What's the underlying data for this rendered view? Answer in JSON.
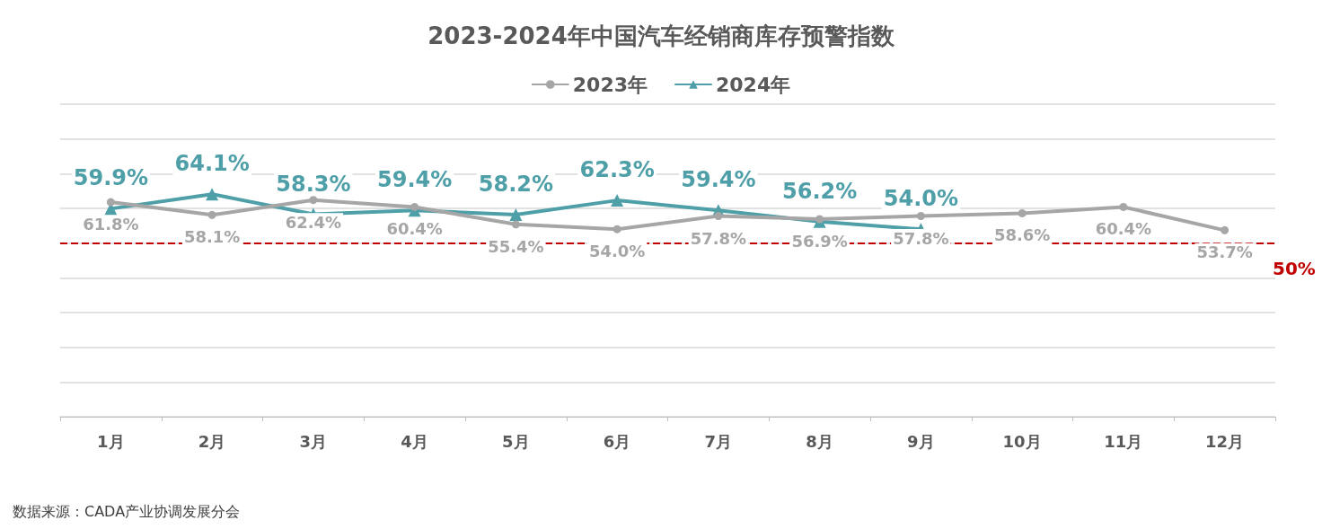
{
  "chart_data": {
    "type": "line",
    "title": "2023-2024年中国汽车经销商库存预警指数",
    "categories": [
      "1月",
      "2月",
      "3月",
      "4月",
      "5月",
      "6月",
      "7月",
      "8月",
      "9月",
      "10月",
      "11月",
      "12月"
    ],
    "series": [
      {
        "name": "2023年",
        "color": "#a6a6a6",
        "marker": "circle",
        "values": [
          61.8,
          58.1,
          62.4,
          60.4,
          55.4,
          54.0,
          57.8,
          56.9,
          57.8,
          58.6,
          60.4,
          53.7
        ],
        "value_labels": [
          "61.8%",
          "58.1%",
          "62.4%",
          "60.4%",
          "55.4%",
          "54.0%",
          "57.8%",
          "56.9%",
          "57.8%",
          "58.6%",
          "60.4%",
          "53.7%"
        ]
      },
      {
        "name": "2024年",
        "color": "#4e9fa8",
        "marker": "triangle",
        "values": [
          59.9,
          64.1,
          58.3,
          59.4,
          58.2,
          62.3,
          59.4,
          56.2,
          54.0,
          null,
          null,
          null
        ],
        "value_labels": [
          "59.9%",
          "64.1%",
          "58.3%",
          "59.4%",
          "58.2%",
          "62.3%",
          "59.4%",
          "56.2%",
          "54.0%",
          null,
          null,
          null
        ]
      }
    ],
    "ylim": [
      0,
      90
    ],
    "yticks": [
      {
        "value": 0,
        "label": null
      },
      {
        "value": 10,
        "label": null
      },
      {
        "value": 20,
        "label": null
      },
      {
        "value": 30,
        "label": null
      },
      {
        "value": 40,
        "label": null
      },
      {
        "value": 50,
        "label": null
      },
      {
        "value": 60,
        "label": null
      },
      {
        "value": 70,
        "label": null
      },
      {
        "value": 80,
        "label": null
      },
      {
        "value": 90,
        "label": null
      }
    ],
    "tick_labels": "x",
    "grid": "y",
    "legend": "top",
    "line_style": "solid",
    "ref_lines": [
      {
        "axis": "y",
        "value": 50,
        "label": "50%",
        "color": "#c00000",
        "line_style": "dashed"
      }
    ],
    "annotations": [
      "数据来源：CADA产业协调发展分会"
    ]
  }
}
